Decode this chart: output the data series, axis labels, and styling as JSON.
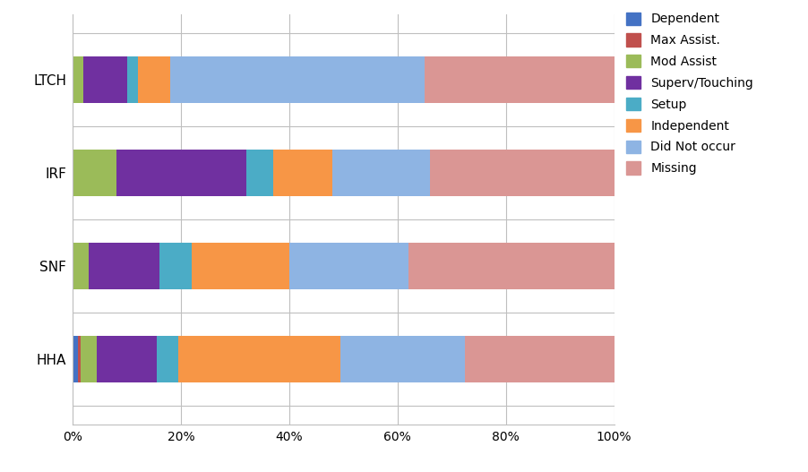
{
  "categories": [
    "HHA",
    "SNF",
    "IRF",
    "LTCH"
  ],
  "series": {
    "Dependent": [
      1.0,
      0.0,
      0.0,
      0.0
    ],
    "Max Assist.": [
      0.5,
      0.0,
      0.0,
      0.0
    ],
    "Mod Assist": [
      3.0,
      3.0,
      8.0,
      2.0
    ],
    "Superv/Touching": [
      11.0,
      13.0,
      24.0,
      8.0
    ],
    "Setup": [
      4.0,
      6.0,
      5.0,
      2.0
    ],
    "Independent": [
      30.0,
      18.0,
      11.0,
      6.0
    ],
    "Did Not occur": [
      23.0,
      22.0,
      18.0,
      47.0
    ],
    "Missing": [
      27.5,
      38.0,
      34.0,
      35.0
    ]
  },
  "colors": {
    "Dependent": "#4472C4",
    "Max Assist.": "#C0504D",
    "Mod Assist": "#9BBB59",
    "Superv/Touching": "#7030A0",
    "Setup": "#4BACC6",
    "Independent": "#F79646",
    "Did Not occur": "#8EB4E3",
    "Missing": "#DA9694"
  },
  "legend_labels": [
    "LTCH",
    "IRF",
    "SNF",
    "HHA"
  ],
  "legend_order": [
    "Dependent",
    "Max Assist.",
    "Mod Assist",
    "Superv/Touching",
    "Setup",
    "Independent",
    "Did Not occur",
    "Missing"
  ],
  "xlim": [
    0,
    100
  ],
  "xticks": [
    0,
    20,
    40,
    60,
    80,
    100
  ],
  "xticklabels": [
    "0%",
    "20%",
    "40%",
    "60%",
    "80%",
    "100%"
  ],
  "background_color": "#FFFFFF",
  "grid_color": "#BFBFBF"
}
